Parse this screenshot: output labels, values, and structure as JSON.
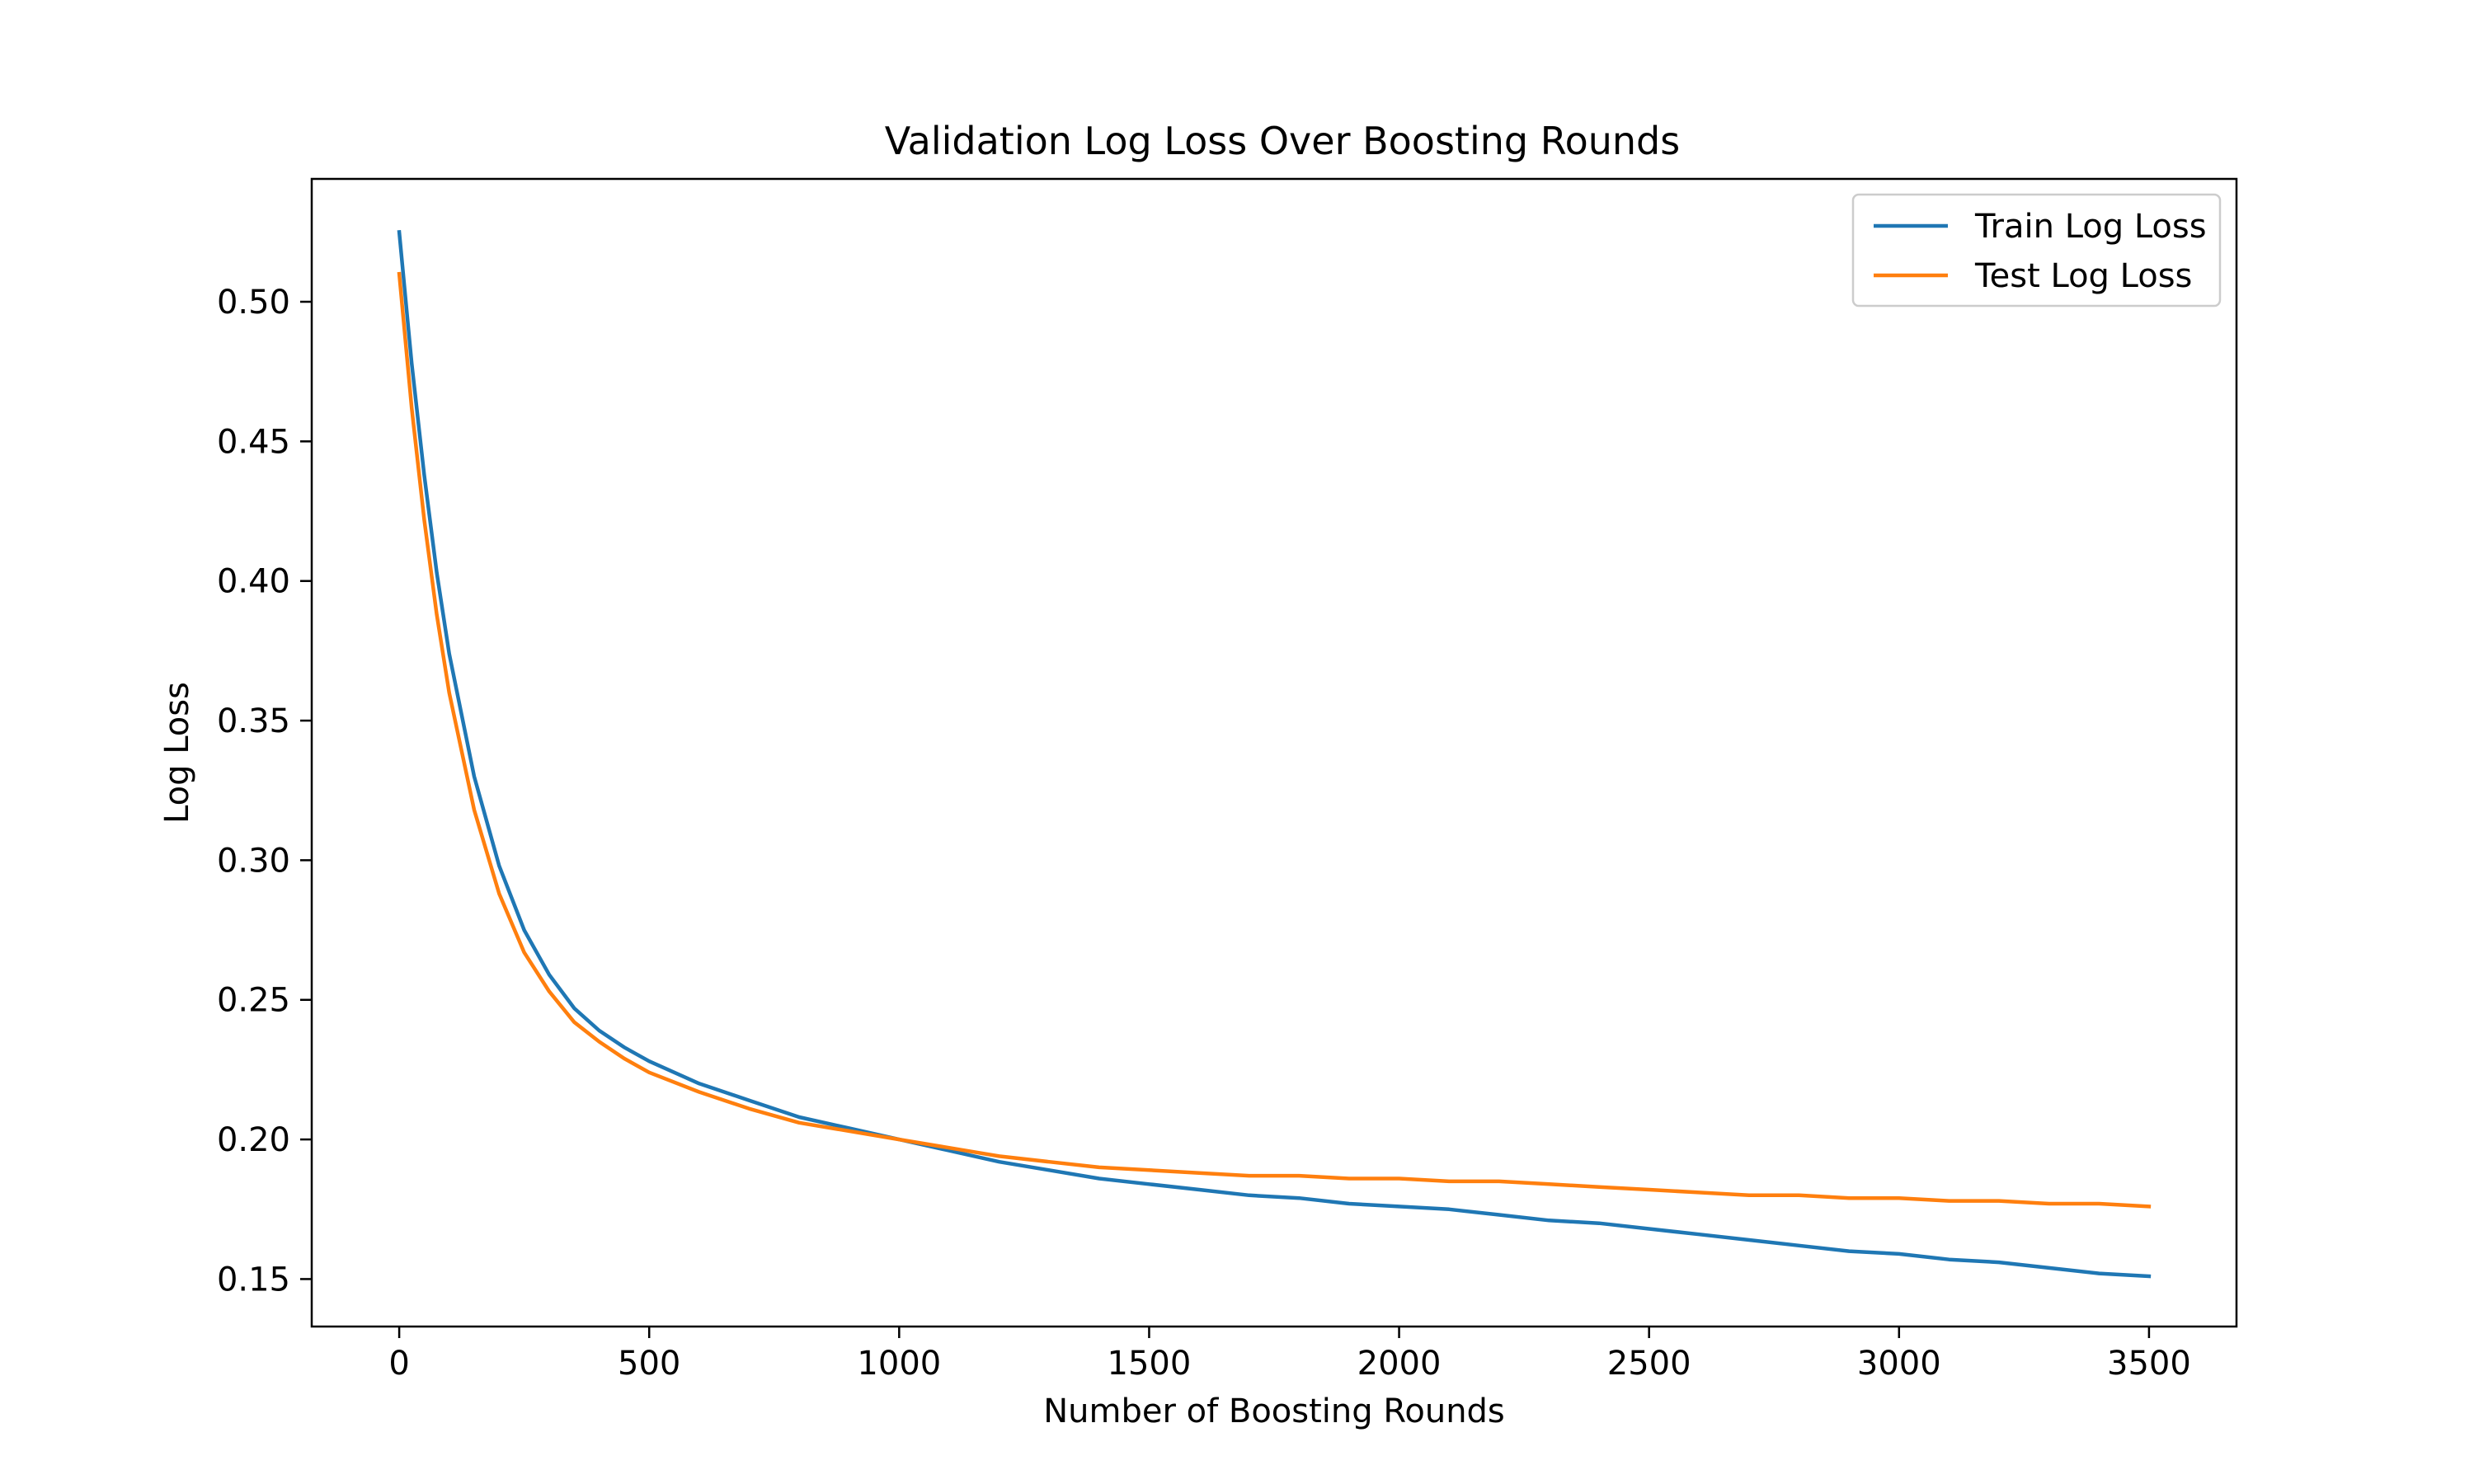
{
  "chart_data": {
    "type": "line",
    "title": "Validation Log Loss Over Boosting Rounds",
    "xlabel": "Number of Boosting Rounds",
    "ylabel": "Log Loss",
    "xlim": [
      -175,
      3675
    ],
    "ylim": [
      0.133,
      0.544
    ],
    "xticks": [
      0,
      500,
      1000,
      1500,
      2000,
      2500,
      3000,
      3500
    ],
    "xtick_labels": [
      "0",
      "500",
      "1000",
      "1500",
      "2000",
      "2500",
      "3000",
      "3500"
    ],
    "yticks": [
      0.15,
      0.2,
      0.25,
      0.3,
      0.35,
      0.4,
      0.45,
      0.5
    ],
    "ytick_labels": [
      "0.15",
      "0.20",
      "0.25",
      "0.30",
      "0.35",
      "0.40",
      "0.45",
      "0.50"
    ],
    "grid": false,
    "legend": "top-right",
    "x": [
      0,
      25,
      50,
      75,
      100,
      150,
      200,
      250,
      300,
      350,
      400,
      450,
      500,
      600,
      700,
      800,
      900,
      1000,
      1100,
      1200,
      1300,
      1400,
      1500,
      1600,
      1700,
      1800,
      1900,
      2000,
      2100,
      2200,
      2300,
      2400,
      2500,
      2600,
      2700,
      2800,
      2900,
      3000,
      3100,
      3200,
      3300,
      3400,
      3500
    ],
    "series": [
      {
        "name": "Train Log Loss",
        "color": "#1f77b4",
        "values": [
          0.525,
          0.478,
          0.438,
          0.403,
          0.374,
          0.33,
          0.298,
          0.275,
          0.259,
          0.247,
          0.239,
          0.233,
          0.228,
          0.22,
          0.214,
          0.208,
          0.204,
          0.2,
          0.196,
          0.192,
          0.189,
          0.186,
          0.184,
          0.182,
          0.18,
          0.179,
          0.177,
          0.176,
          0.175,
          0.173,
          0.171,
          0.17,
          0.168,
          0.166,
          0.164,
          0.162,
          0.16,
          0.159,
          0.157,
          0.156,
          0.154,
          0.152,
          0.151
        ]
      },
      {
        "name": "Test Log Loss",
        "color": "#ff7f0e",
        "values": [
          0.51,
          0.462,
          0.422,
          0.388,
          0.36,
          0.318,
          0.288,
          0.267,
          0.253,
          0.242,
          0.235,
          0.229,
          0.224,
          0.217,
          0.211,
          0.206,
          0.203,
          0.2,
          0.197,
          0.194,
          0.192,
          0.19,
          0.189,
          0.188,
          0.187,
          0.187,
          0.186,
          0.186,
          0.185,
          0.185,
          0.184,
          0.183,
          0.182,
          0.181,
          0.18,
          0.18,
          0.179,
          0.179,
          0.178,
          0.178,
          0.177,
          0.177,
          0.176
        ]
      }
    ]
  }
}
